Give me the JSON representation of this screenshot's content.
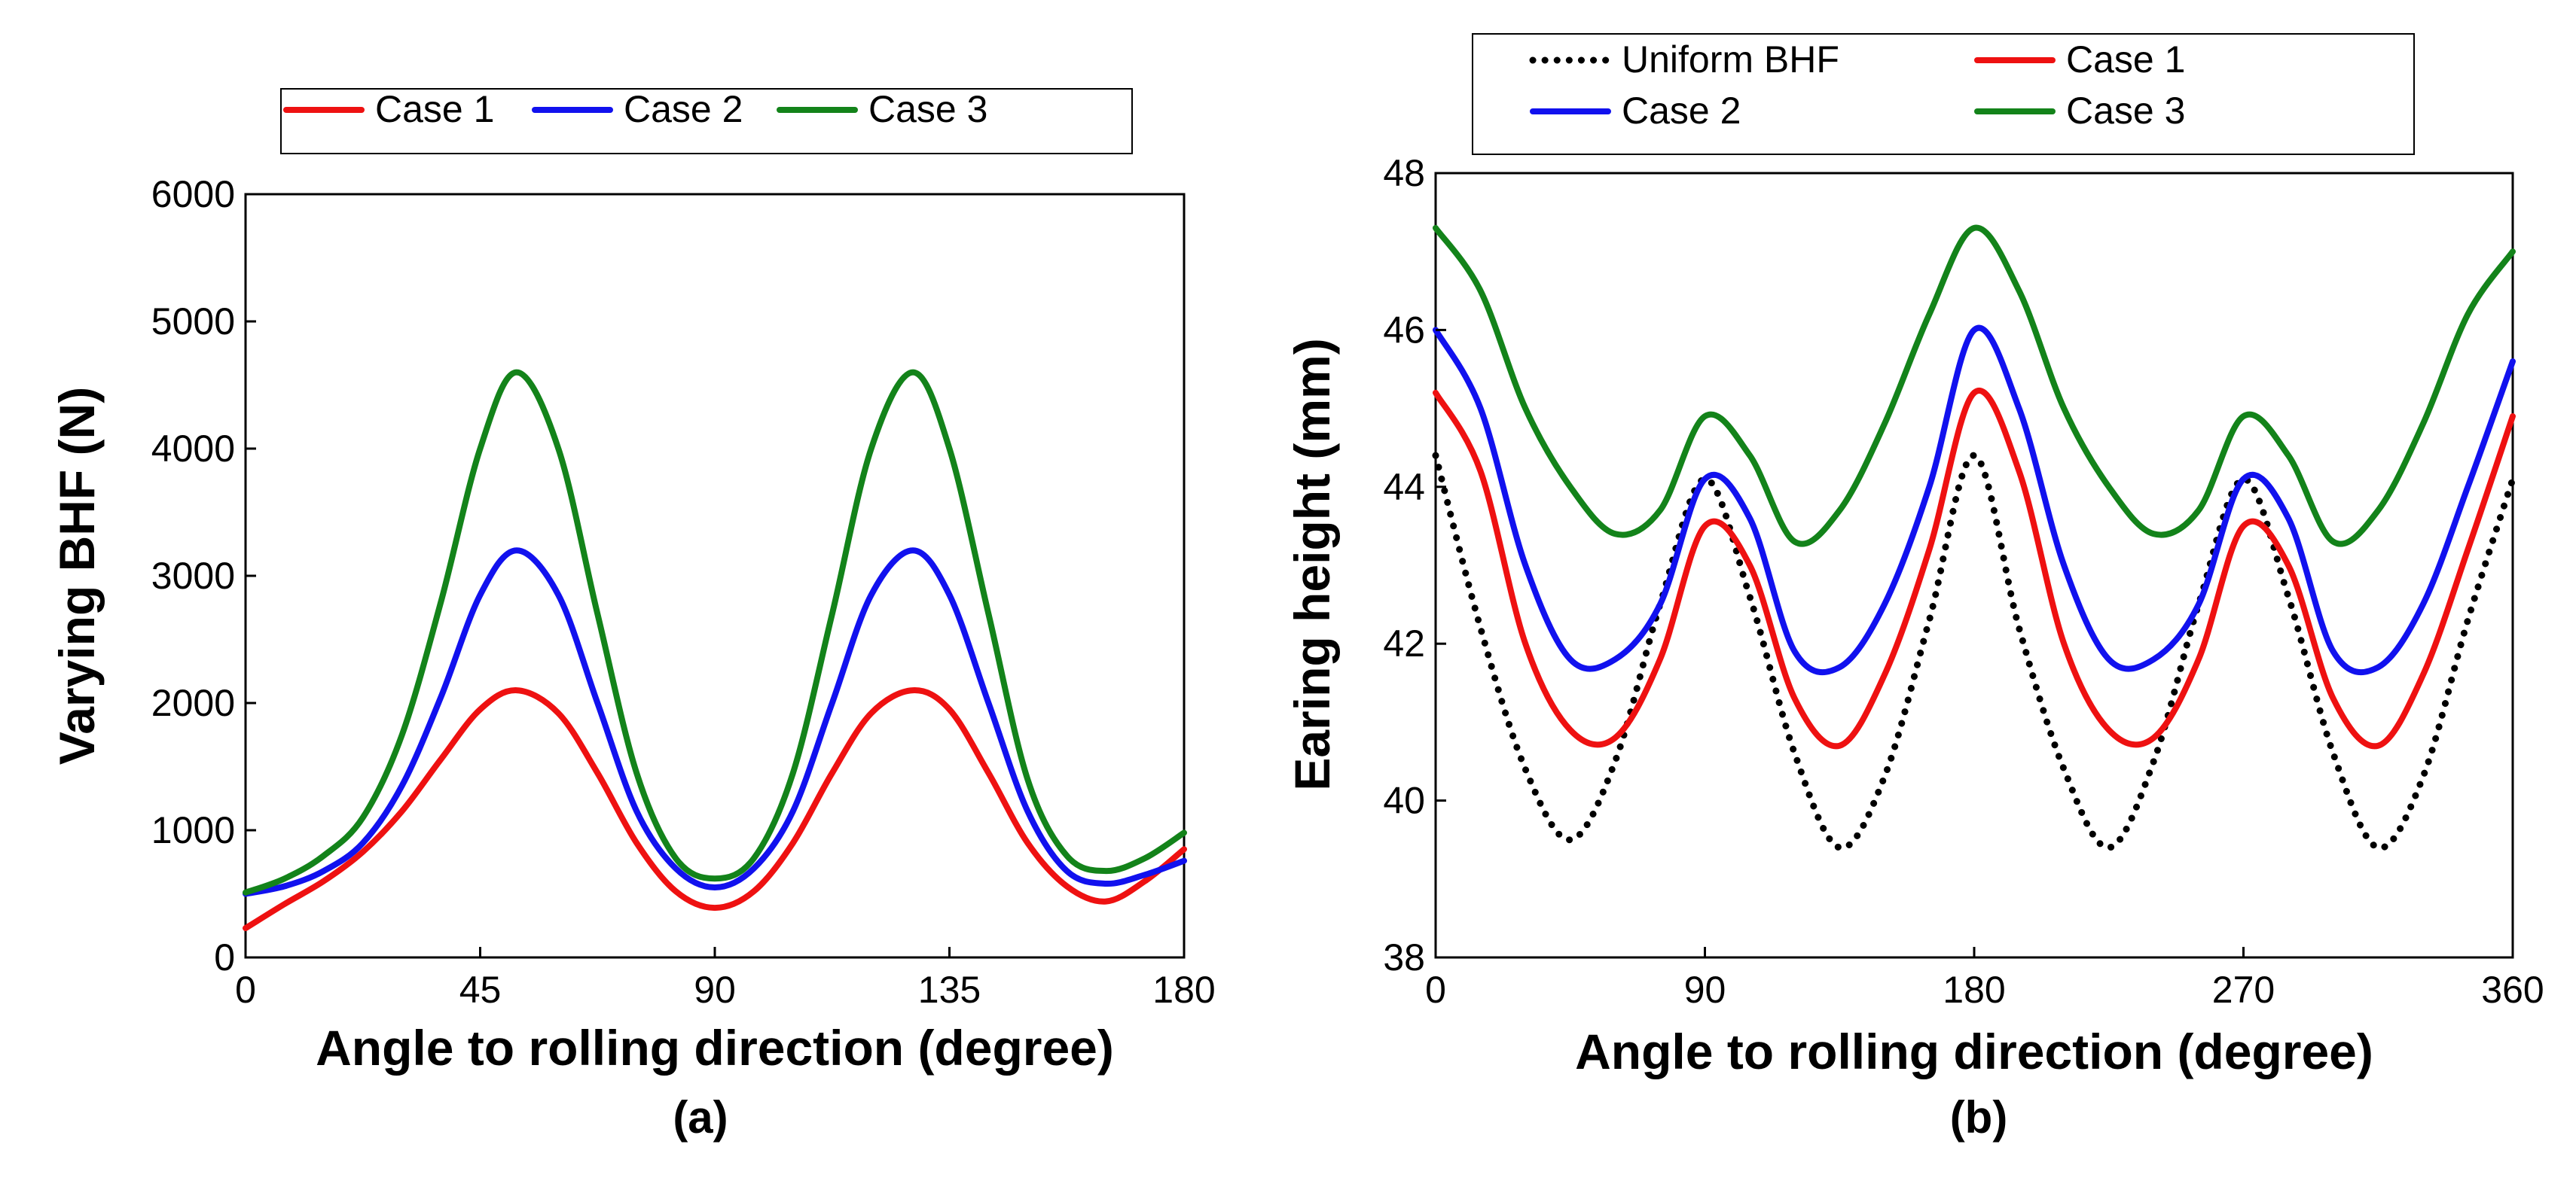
{
  "figure": {
    "panel_labels": [
      "(a)",
      "(b)"
    ]
  },
  "chart_data": [
    {
      "type": "line",
      "panel": "(a)",
      "title": "",
      "xlabel": "Angle to rolling direction (degree)",
      "ylabel": "Varying BHF (N)",
      "xlim": [
        0,
        180
      ],
      "ylim": [
        0,
        6000
      ],
      "xticks": [
        0,
        45,
        90,
        135,
        180
      ],
      "yticks": [
        0,
        1000,
        2000,
        3000,
        4000,
        5000,
        6000
      ],
      "grid": false,
      "legend_position": "top",
      "x": [
        0,
        7.5,
        15,
        22.5,
        30,
        37.5,
        45,
        52,
        60,
        67.5,
        75,
        82.5,
        90,
        97.5,
        105,
        112.5,
        120,
        128,
        135,
        142.5,
        150,
        157.5,
        165,
        172.5,
        180
      ],
      "series": [
        {
          "name": "Case 1",
          "color": "#ee1111",
          "style": "solid",
          "values": [
            230,
            420,
            600,
            830,
            1150,
            1560,
            1950,
            2100,
            1920,
            1450,
            900,
            520,
            390,
            520,
            900,
            1450,
            1920,
            2100,
            1950,
            1450,
            900,
            560,
            440,
            600,
            850
          ]
        },
        {
          "name": "Case 2",
          "color": "#1111ee",
          "style": "solid",
          "values": [
            500,
            560,
            680,
            900,
            1350,
            2050,
            2850,
            3200,
            2850,
            2000,
            1150,
            700,
            550,
            700,
            1150,
            2000,
            2850,
            3200,
            2850,
            2000,
            1150,
            680,
            580,
            650,
            760
          ]
        },
        {
          "name": "Case 3",
          "color": "#13831a",
          "style": "solid",
          "values": [
            510,
            620,
            800,
            1100,
            1750,
            2800,
            4000,
            4600,
            4000,
            2700,
            1450,
            780,
            620,
            780,
            1450,
            2700,
            4000,
            4600,
            4000,
            2700,
            1400,
            800,
            680,
            780,
            980
          ]
        }
      ]
    },
    {
      "type": "line",
      "panel": "(b)",
      "title": "",
      "xlabel": "Angle to rolling direction (degree)",
      "ylabel": "Earing height (mm)",
      "xlim": [
        0,
        360
      ],
      "ylim": [
        38,
        48
      ],
      "xticks": [
        0,
        90,
        180,
        270,
        360
      ],
      "yticks": [
        38,
        40,
        42,
        44,
        46,
        48
      ],
      "grid": false,
      "legend_position": "top",
      "x": [
        0,
        15,
        30,
        45,
        60,
        75,
        90,
        105,
        120,
        135,
        150,
        165,
        180,
        195,
        210,
        225,
        240,
        255,
        270,
        285,
        300,
        315,
        330,
        345,
        360
      ],
      "series": [
        {
          "name": "Uniform BHF",
          "color": "#000000",
          "style": "dotted",
          "values": [
            44.4,
            42.2,
            40.4,
            39.5,
            40.5,
            42.5,
            44.1,
            42.6,
            40.6,
            39.4,
            40.3,
            42.3,
            44.4,
            42.2,
            40.4,
            39.4,
            40.5,
            42.5,
            44.1,
            42.6,
            40.6,
            39.4,
            40.3,
            42.3,
            44.1
          ]
        },
        {
          "name": "Case 1",
          "color": "#ee1111",
          "style": "solid",
          "values": [
            45.2,
            44.2,
            42.0,
            40.9,
            40.8,
            41.8,
            43.5,
            43.0,
            41.3,
            40.7,
            41.6,
            43.2,
            45.2,
            44.2,
            42.0,
            40.9,
            40.8,
            41.8,
            43.5,
            43.0,
            41.3,
            40.7,
            41.6,
            43.2,
            44.9
          ]
        },
        {
          "name": "Case 2",
          "color": "#1111ee",
          "style": "solid",
          "values": [
            46.0,
            45.0,
            43.0,
            41.8,
            41.8,
            42.5,
            44.1,
            43.6,
            41.9,
            41.7,
            42.5,
            44.0,
            46.0,
            45.0,
            43.0,
            41.8,
            41.8,
            42.5,
            44.1,
            43.6,
            41.9,
            41.7,
            42.5,
            44.0,
            45.6
          ]
        },
        {
          "name": "Case 3",
          "color": "#13831a",
          "style": "solid",
          "values": [
            47.3,
            46.5,
            45.0,
            44.0,
            43.4,
            43.7,
            44.9,
            44.4,
            43.3,
            43.7,
            44.8,
            46.2,
            47.3,
            46.5,
            45.0,
            44.0,
            43.4,
            43.7,
            44.9,
            44.4,
            43.3,
            43.7,
            44.8,
            46.2,
            47.0
          ]
        }
      ]
    }
  ]
}
